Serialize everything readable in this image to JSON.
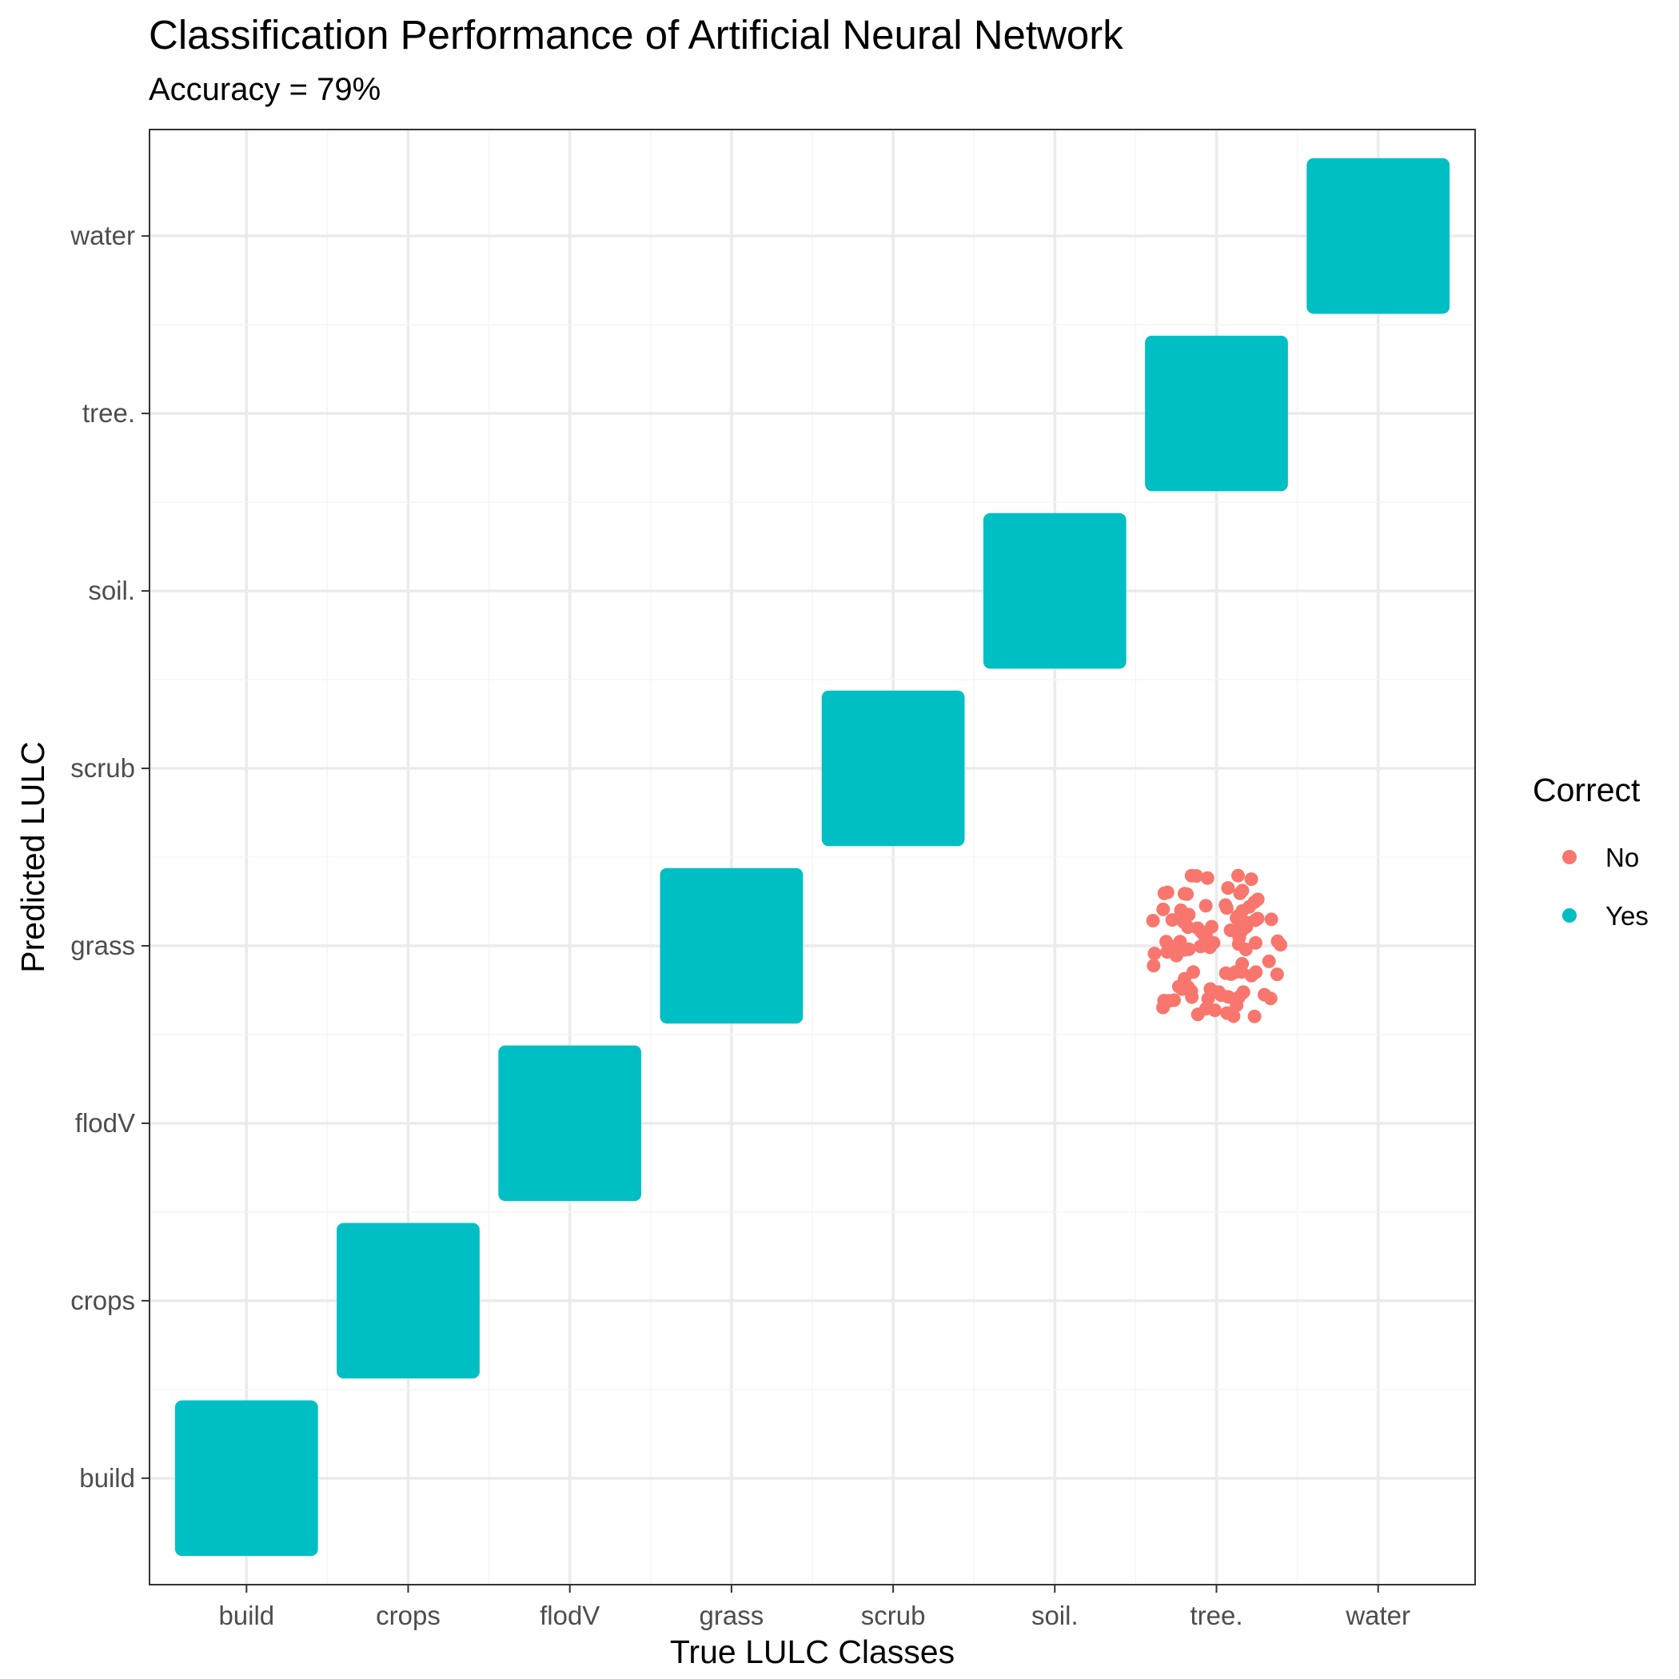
{
  "chart_data": {
    "type": "scatter",
    "title": "Classification Performance of Artificial Neural Network",
    "subtitle": "Accuracy = 79%",
    "xlabel": "True LULC Classes",
    "ylabel": "Predicted LULC",
    "x_categories": [
      "build",
      "crops",
      "flodV",
      "grass",
      "scrub",
      "soil.",
      "tree.",
      "water"
    ],
    "y_categories": [
      "build",
      "crops",
      "flodV",
      "grass",
      "scrub",
      "soil.",
      "tree.",
      "water"
    ],
    "grid": true,
    "jitter": 0.4,
    "legend": {
      "title": "Correct",
      "position": "right",
      "entries": [
        {
          "label": "No",
          "color": "#F8766D"
        },
        {
          "label": "Yes",
          "color": "#00BFC4"
        }
      ]
    },
    "series": [
      {
        "name": "Yes",
        "color": "#00BFC4",
        "cells": [
          {
            "true": "build",
            "predicted": "build"
          },
          {
            "true": "crops",
            "predicted": "crops"
          },
          {
            "true": "flodV",
            "predicted": "flodV"
          },
          {
            "true": "grass",
            "predicted": "grass"
          },
          {
            "true": "scrub",
            "predicted": "scrub"
          },
          {
            "true": "soil.",
            "predicted": "soil."
          },
          {
            "true": "tree.",
            "predicted": "tree."
          },
          {
            "true": "water",
            "predicted": "water"
          }
        ]
      },
      {
        "name": "No",
        "color": "#F8766D",
        "cells": [
          {
            "true": "tree.",
            "predicted": "grass",
            "approx_count": 100
          }
        ]
      }
    ]
  }
}
